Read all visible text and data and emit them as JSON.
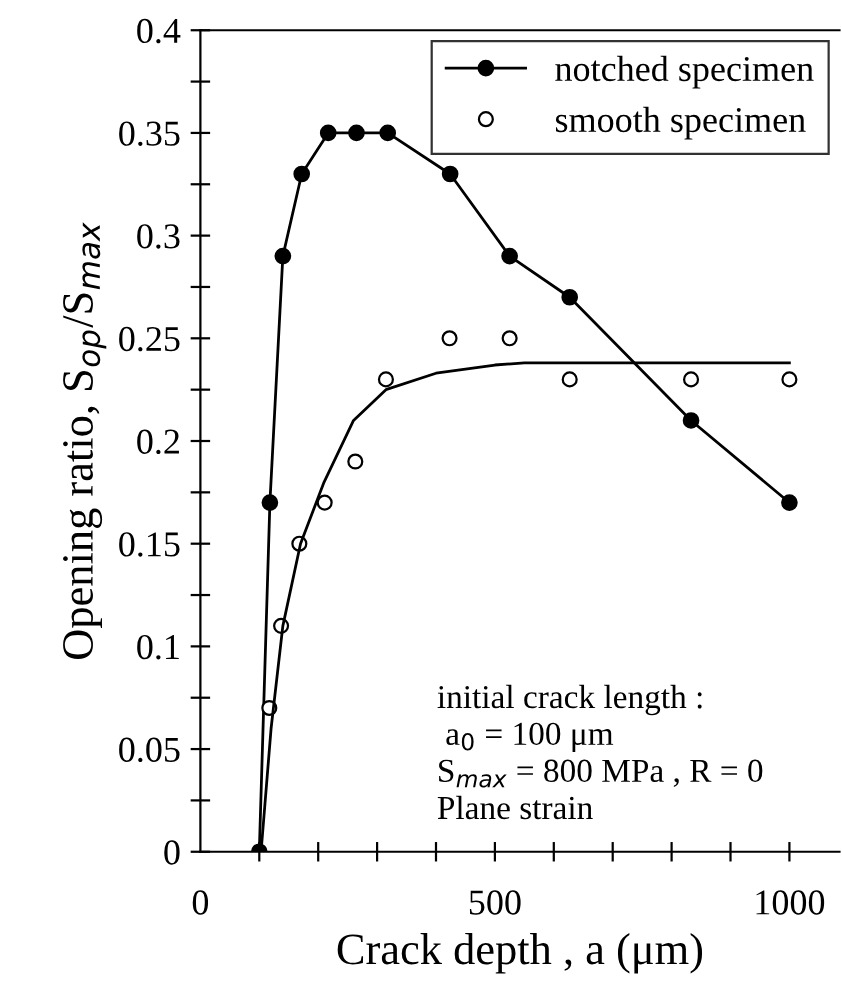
{
  "chart_data": {
    "type": "line",
    "xlabel": "Crack depth , a (μm)",
    "ylabel": "Opening ratio, S$_{op}$/S$_{max}$",
    "series": [
      {
        "name": "notched specimen",
        "color": "#000000",
        "marker": "circle",
        "x": [
          100,
          118,
          140,
          172,
          217,
          265,
          318,
          424,
          525,
          627,
          833,
          1000
        ],
        "values": [
          0,
          0.17,
          0.29,
          0.33,
          0.35,
          0.35,
          0.35,
          0.33,
          0.29,
          0.27,
          0.21,
          0.17
        ]
      },
      {
        "name": "smooth specimen",
        "type": "scatter",
        "color": "#000000",
        "marker": "circle",
        "x": [
          117,
          137,
          168,
          211,
          263,
          315,
          423,
          525,
          627,
          833,
          1000
        ],
        "values": [
          0.07,
          0.11,
          0.15,
          0.17,
          0.19,
          0.23,
          0.25,
          0.25,
          0.23,
          0.23,
          0.23
        ]
      },
      {
        "color": "#000000",
        "marker": "none",
        "x": [
          103,
          120,
          140,
          170,
          210,
          260,
          315,
          400,
          500,
          550,
          1000
        ],
        "values": [
          0,
          0.06,
          0.11,
          0.15,
          0.18,
          0.21,
          0.225,
          0.233,
          0.237,
          0.238,
          0.238
        ]
      }
    ],
    "xlim": [
      0,
      1085
    ],
    "ylim": [
      0,
      0.4
    ],
    "xticks": [
      0,
      {
        "value": 100,
        "label": null
      },
      {
        "value": 200,
        "label": null
      },
      {
        "value": 300,
        "label": null
      },
      {
        "value": 400,
        "label": null
      },
      500,
      {
        "value": 600,
        "label": null
      },
      {
        "value": 700,
        "label": null
      },
      {
        "value": 800,
        "label": null
      },
      {
        "value": 900,
        "label": null
      },
      1000
    ],
    "yticks": [
      0,
      {
        "value": 0.025,
        "label": null
      },
      0.05,
      {
        "value": 0.075,
        "label": null
      },
      0.1,
      {
        "value": 0.125,
        "label": null
      },
      0.15,
      {
        "value": 0.175,
        "label": null
      },
      0.2,
      {
        "value": 0.225,
        "label": null
      },
      0.25,
      {
        "value": 0.275,
        "label": null
      },
      0.3,
      {
        "value": 0.325,
        "label": null
      },
      0.35,
      {
        "value": 0.375,
        "label": null
      },
      0.4
    ],
    "annotations": [
      "initial crack length :",
      " a$_{0}$ = 100 μm",
      "S$_{max}$ = 800 MPa , R = 0",
      "Plane strain"
    ],
    "legend": "top right",
    "grid": false
  }
}
